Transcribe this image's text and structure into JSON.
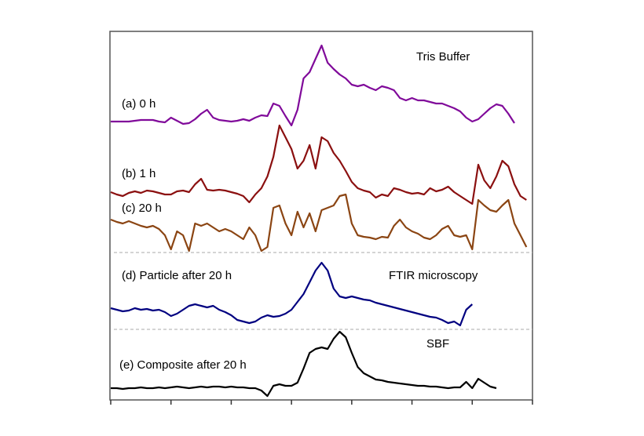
{
  "chart_data": {
    "type": "line",
    "annotations": [
      "Tris Buffer",
      "(a) 0 h",
      "(b) 1 h",
      "(c) 20 h",
      "(d) Particle after 20 h",
      "FTIR microscopy",
      "SBF",
      "(e) Composite after 20 h"
    ],
    "x": [
      0,
      0.1,
      0.2,
      0.3,
      0.4,
      0.5,
      0.6,
      0.7,
      0.8,
      0.9,
      1,
      1.1,
      1.2,
      1.3,
      1.4,
      1.5,
      1.6,
      1.7,
      1.8,
      1.9,
      2,
      2.1,
      2.2,
      2.3,
      2.4,
      2.5,
      2.6,
      2.7,
      2.8,
      2.9,
      3,
      3.1,
      3.2,
      3.3,
      3.4,
      3.5,
      3.6,
      3.7,
      3.8,
      3.9,
      4,
      4.1,
      4.2,
      4.3,
      4.4,
      4.5,
      4.6,
      4.7,
      4.8,
      4.9,
      5,
      5.1,
      5.2,
      5.3,
      5.4,
      5.5,
      5.6,
      5.7,
      5.8,
      5.9,
      6,
      6.1,
      6.2,
      6.3,
      6.4,
      6.5,
      6.6,
      6.7,
      6.8,
      6.9,
      7
    ],
    "xlim": [
      0,
      7
    ],
    "xticks": [
      0,
      1,
      2,
      3,
      4,
      5,
      6,
      7
    ],
    "ylim": [
      0,
      470
    ],
    "series": [
      {
        "color": "#800a9a",
        "values": [
          355,
          355,
          355,
          355,
          356,
          357,
          357,
          357,
          355,
          354,
          360,
          356,
          352,
          353,
          358,
          365,
          370,
          360,
          357,
          356,
          355,
          356,
          358,
          356,
          360,
          363,
          362,
          378,
          375,
          362,
          350,
          370,
          410,
          418,
          435,
          452,
          430,
          422,
          415,
          410,
          402,
          400,
          402,
          398,
          395,
          400,
          398,
          395,
          385,
          382,
          385,
          382,
          382,
          380,
          378,
          378,
          375,
          372,
          368,
          360,
          355,
          358,
          365,
          372,
          377,
          375,
          365,
          353,
          null,
          null,
          null
        ]
      },
      {
        "color": "#8b1010",
        "values": [
          265,
          262,
          260,
          264,
          266,
          264,
          267,
          266,
          264,
          262,
          262,
          266,
          267,
          265,
          275,
          282,
          268,
          267,
          268,
          267,
          265,
          263,
          260,
          252,
          262,
          270,
          285,
          310,
          350,
          335,
          320,
          295,
          305,
          325,
          295,
          335,
          330,
          315,
          305,
          292,
          278,
          270,
          267,
          265,
          258,
          262,
          260,
          270,
          268,
          265,
          263,
          264,
          262,
          270,
          266,
          268,
          272,
          265,
          260,
          255,
          250,
          300,
          280,
          270,
          285,
          305,
          298,
          275,
          260,
          255,
          null
        ]
      },
      {
        "color": "#8b4513",
        "values": [
          230,
          227,
          225,
          228,
          225,
          222,
          220,
          222,
          218,
          210,
          192,
          215,
          210,
          190,
          225,
          222,
          225,
          220,
          215,
          218,
          215,
          210,
          205,
          220,
          210,
          190,
          195,
          245,
          248,
          225,
          210,
          240,
          220,
          238,
          215,
          242,
          245,
          248,
          260,
          262,
          225,
          210,
          208,
          207,
          205,
          208,
          207,
          222,
          230,
          220,
          215,
          212,
          207,
          205,
          210,
          218,
          222,
          210,
          208,
          210,
          192,
          255,
          248,
          242,
          240,
          248,
          255,
          225,
          210,
          195,
          null
        ]
      },
      {
        "color": "#000080",
        "values": [
          117,
          115,
          113,
          114,
          117,
          115,
          116,
          114,
          115,
          112,
          107,
          110,
          115,
          120,
          122,
          120,
          118,
          120,
          115,
          112,
          108,
          102,
          100,
          98,
          100,
          105,
          108,
          106,
          107,
          110,
          115,
          125,
          135,
          150,
          165,
          175,
          165,
          142,
          132,
          130,
          132,
          130,
          128,
          127,
          124,
          122,
          120,
          118,
          116,
          114,
          112,
          110,
          108,
          106,
          105,
          102,
          98,
          100,
          95,
          115,
          122,
          null,
          null,
          null,
          null,
          null,
          null,
          null,
          null,
          null,
          null
        ]
      },
      {
        "color": "#000000",
        "values": [
          15,
          15,
          14,
          15,
          15,
          16,
          15,
          15,
          16,
          15,
          16,
          17,
          16,
          15,
          16,
          17,
          16,
          17,
          17,
          16,
          17,
          16,
          16,
          15,
          15,
          12,
          5,
          18,
          20,
          18,
          18,
          22,
          40,
          60,
          65,
          67,
          65,
          78,
          87,
          80,
          60,
          42,
          34,
          30,
          26,
          25,
          23,
          22,
          21,
          20,
          19,
          18,
          18,
          17,
          17,
          16,
          15,
          16,
          16,
          23,
          15,
          27,
          22,
          17,
          15,
          null,
          null,
          null,
          null,
          null,
          null
        ]
      }
    ]
  }
}
